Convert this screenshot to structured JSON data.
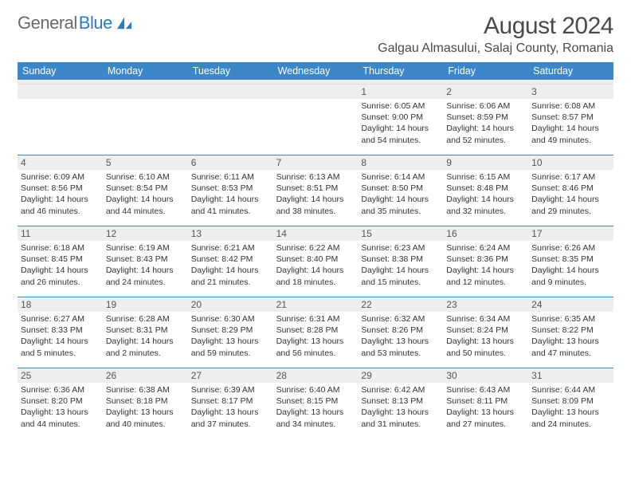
{
  "brand": {
    "part1": "General",
    "part2": "Blue"
  },
  "header": {
    "month_title": "August 2024",
    "location": "Galgau Almasului, Salaj County, Romania"
  },
  "colors": {
    "header_bg": "#3b87c8",
    "header_text": "#ffffff",
    "daynum_bg": "#eeeeee",
    "rule": "#3b87c8"
  },
  "weekdays": [
    "Sunday",
    "Monday",
    "Tuesday",
    "Wednesday",
    "Thursday",
    "Friday",
    "Saturday"
  ],
  "weeks": [
    [
      {
        "n": "",
        "sr": "",
        "ss": "",
        "dl": ""
      },
      {
        "n": "",
        "sr": "",
        "ss": "",
        "dl": ""
      },
      {
        "n": "",
        "sr": "",
        "ss": "",
        "dl": ""
      },
      {
        "n": "",
        "sr": "",
        "ss": "",
        "dl": ""
      },
      {
        "n": "1",
        "sr": "Sunrise: 6:05 AM",
        "ss": "Sunset: 9:00 PM",
        "dl": "Daylight: 14 hours and 54 minutes."
      },
      {
        "n": "2",
        "sr": "Sunrise: 6:06 AM",
        "ss": "Sunset: 8:59 PM",
        "dl": "Daylight: 14 hours and 52 minutes."
      },
      {
        "n": "3",
        "sr": "Sunrise: 6:08 AM",
        "ss": "Sunset: 8:57 PM",
        "dl": "Daylight: 14 hours and 49 minutes."
      }
    ],
    [
      {
        "n": "4",
        "sr": "Sunrise: 6:09 AM",
        "ss": "Sunset: 8:56 PM",
        "dl": "Daylight: 14 hours and 46 minutes."
      },
      {
        "n": "5",
        "sr": "Sunrise: 6:10 AM",
        "ss": "Sunset: 8:54 PM",
        "dl": "Daylight: 14 hours and 44 minutes."
      },
      {
        "n": "6",
        "sr": "Sunrise: 6:11 AM",
        "ss": "Sunset: 8:53 PM",
        "dl": "Daylight: 14 hours and 41 minutes."
      },
      {
        "n": "7",
        "sr": "Sunrise: 6:13 AM",
        "ss": "Sunset: 8:51 PM",
        "dl": "Daylight: 14 hours and 38 minutes."
      },
      {
        "n": "8",
        "sr": "Sunrise: 6:14 AM",
        "ss": "Sunset: 8:50 PM",
        "dl": "Daylight: 14 hours and 35 minutes."
      },
      {
        "n": "9",
        "sr": "Sunrise: 6:15 AM",
        "ss": "Sunset: 8:48 PM",
        "dl": "Daylight: 14 hours and 32 minutes."
      },
      {
        "n": "10",
        "sr": "Sunrise: 6:17 AM",
        "ss": "Sunset: 8:46 PM",
        "dl": "Daylight: 14 hours and 29 minutes."
      }
    ],
    [
      {
        "n": "11",
        "sr": "Sunrise: 6:18 AM",
        "ss": "Sunset: 8:45 PM",
        "dl": "Daylight: 14 hours and 26 minutes."
      },
      {
        "n": "12",
        "sr": "Sunrise: 6:19 AM",
        "ss": "Sunset: 8:43 PM",
        "dl": "Daylight: 14 hours and 24 minutes."
      },
      {
        "n": "13",
        "sr": "Sunrise: 6:21 AM",
        "ss": "Sunset: 8:42 PM",
        "dl": "Daylight: 14 hours and 21 minutes."
      },
      {
        "n": "14",
        "sr": "Sunrise: 6:22 AM",
        "ss": "Sunset: 8:40 PM",
        "dl": "Daylight: 14 hours and 18 minutes."
      },
      {
        "n": "15",
        "sr": "Sunrise: 6:23 AM",
        "ss": "Sunset: 8:38 PM",
        "dl": "Daylight: 14 hours and 15 minutes."
      },
      {
        "n": "16",
        "sr": "Sunrise: 6:24 AM",
        "ss": "Sunset: 8:36 PM",
        "dl": "Daylight: 14 hours and 12 minutes."
      },
      {
        "n": "17",
        "sr": "Sunrise: 6:26 AM",
        "ss": "Sunset: 8:35 PM",
        "dl": "Daylight: 14 hours and 9 minutes."
      }
    ],
    [
      {
        "n": "18",
        "sr": "Sunrise: 6:27 AM",
        "ss": "Sunset: 8:33 PM",
        "dl": "Daylight: 14 hours and 5 minutes."
      },
      {
        "n": "19",
        "sr": "Sunrise: 6:28 AM",
        "ss": "Sunset: 8:31 PM",
        "dl": "Daylight: 14 hours and 2 minutes."
      },
      {
        "n": "20",
        "sr": "Sunrise: 6:30 AM",
        "ss": "Sunset: 8:29 PM",
        "dl": "Daylight: 13 hours and 59 minutes."
      },
      {
        "n": "21",
        "sr": "Sunrise: 6:31 AM",
        "ss": "Sunset: 8:28 PM",
        "dl": "Daylight: 13 hours and 56 minutes."
      },
      {
        "n": "22",
        "sr": "Sunrise: 6:32 AM",
        "ss": "Sunset: 8:26 PM",
        "dl": "Daylight: 13 hours and 53 minutes."
      },
      {
        "n": "23",
        "sr": "Sunrise: 6:34 AM",
        "ss": "Sunset: 8:24 PM",
        "dl": "Daylight: 13 hours and 50 minutes."
      },
      {
        "n": "24",
        "sr": "Sunrise: 6:35 AM",
        "ss": "Sunset: 8:22 PM",
        "dl": "Daylight: 13 hours and 47 minutes."
      }
    ],
    [
      {
        "n": "25",
        "sr": "Sunrise: 6:36 AM",
        "ss": "Sunset: 8:20 PM",
        "dl": "Daylight: 13 hours and 44 minutes."
      },
      {
        "n": "26",
        "sr": "Sunrise: 6:38 AM",
        "ss": "Sunset: 8:18 PM",
        "dl": "Daylight: 13 hours and 40 minutes."
      },
      {
        "n": "27",
        "sr": "Sunrise: 6:39 AM",
        "ss": "Sunset: 8:17 PM",
        "dl": "Daylight: 13 hours and 37 minutes."
      },
      {
        "n": "28",
        "sr": "Sunrise: 6:40 AM",
        "ss": "Sunset: 8:15 PM",
        "dl": "Daylight: 13 hours and 34 minutes."
      },
      {
        "n": "29",
        "sr": "Sunrise: 6:42 AM",
        "ss": "Sunset: 8:13 PM",
        "dl": "Daylight: 13 hours and 31 minutes."
      },
      {
        "n": "30",
        "sr": "Sunrise: 6:43 AM",
        "ss": "Sunset: 8:11 PM",
        "dl": "Daylight: 13 hours and 27 minutes."
      },
      {
        "n": "31",
        "sr": "Sunrise: 6:44 AM",
        "ss": "Sunset: 8:09 PM",
        "dl": "Daylight: 13 hours and 24 minutes."
      }
    ]
  ]
}
